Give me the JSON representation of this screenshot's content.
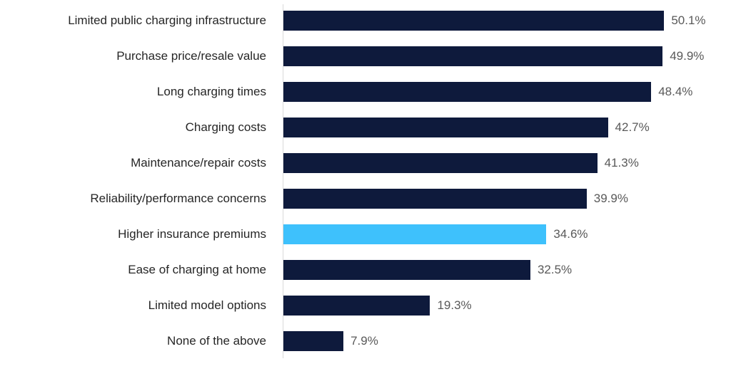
{
  "chart_data": {
    "type": "bar",
    "orientation": "horizontal",
    "title": "",
    "xlabel": "",
    "ylabel": "",
    "grid": false,
    "legend": false,
    "xlim": [
      0,
      58.9
    ],
    "categories": [
      "Limited public charging infrastructure",
      "Purchase price/resale value",
      "Long charging times",
      "Charging costs",
      "Maintenance/repair costs",
      "Reliability/performance concerns",
      "Higher insurance premiums",
      "Ease of charging at home",
      "Limited model options",
      "None of the above"
    ],
    "values": [
      50.1,
      49.9,
      48.4,
      42.7,
      41.3,
      39.9,
      34.6,
      32.5,
      19.3,
      7.9
    ],
    "data_labels": [
      "50.1%",
      "49.9%",
      "48.4%",
      "42.7%",
      "41.3%",
      "39.9%",
      "34.6%",
      "32.5%",
      "19.3%",
      "7.9%"
    ],
    "highlight_index": 6,
    "highlighted_category": "Higher insurance premiums",
    "colors": {
      "bar": "#0E1A3C",
      "highlight": "#3EC1FC",
      "category_label": "#262626",
      "value_label": "#595959",
      "axis_line": "#D9D9D9"
    }
  }
}
